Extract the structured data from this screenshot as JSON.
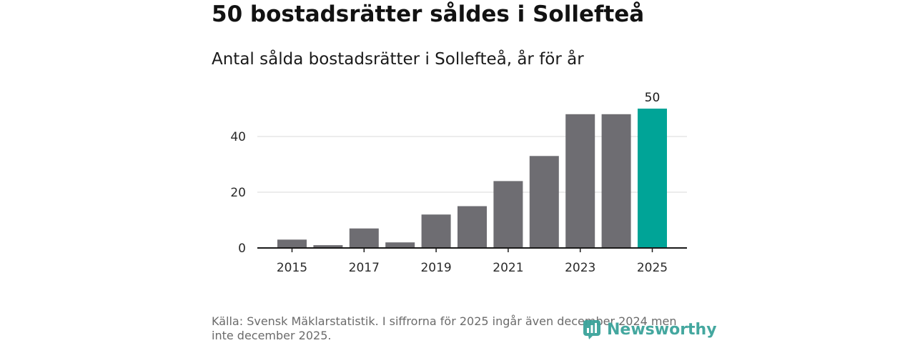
{
  "title": "50 bostadsrätter såldes i Sollefteå",
  "subtitle": "Antal sålda bostadsrätter i Sollefteå, år för år",
  "source": "Källa: Svensk Mäklarstatistik. I siffrorna för 2025 ingår även december 2024 men inte december 2025.",
  "brand": {
    "name": "Newsworthy",
    "icon": "newsworthy-logo-icon"
  },
  "colors": {
    "bar": "#6e6d72",
    "highlight": "#00a497",
    "grid": "#d8d8d8",
    "axis": "#1a1a1a"
  },
  "chart_data": {
    "type": "bar",
    "title": "Antal sålda bostadsrätter i Sollefteå, år för år",
    "xlabel": "",
    "ylabel": "",
    "categories": [
      "2015",
      "2016",
      "2017",
      "2018",
      "2019",
      "2020",
      "2021",
      "2022",
      "2023",
      "2024",
      "2025"
    ],
    "values": [
      3,
      1,
      7,
      2,
      12,
      15,
      24,
      33,
      48,
      48,
      50
    ],
    "x_tick_labels": [
      "2015",
      "2017",
      "2019",
      "2021",
      "2023",
      "2025"
    ],
    "y_ticks": [
      0,
      20,
      40
    ],
    "ylim": [
      0,
      50
    ],
    "highlight_category": "2025",
    "data_labels": [
      {
        "category": "2025",
        "text": "50"
      }
    ],
    "grid": true
  }
}
